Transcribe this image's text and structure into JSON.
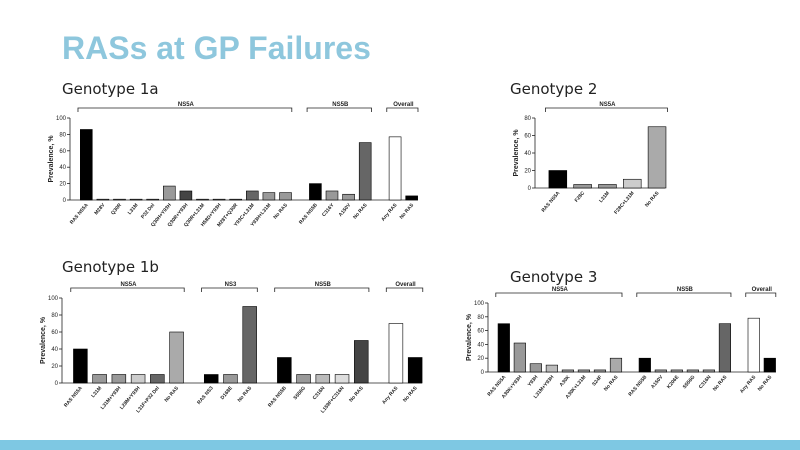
{
  "title": "RASs at GP Failures",
  "chart_data": [
    {
      "type": "bar",
      "title": "Genotype 1a",
      "y_label": "Prevalence, %",
      "ylim": [
        0,
        100
      ],
      "yticks": [
        0,
        20,
        40,
        60,
        80,
        100
      ],
      "groups": [
        {
          "name": "NS5A",
          "categories": [
            "RAS NS5A",
            "M28V",
            "Q30R",
            "L31M",
            "P32 Del",
            "Q30H+Y93H",
            "Q30R+Y93H",
            "Q30R+L31M",
            "H58D+Y93H",
            "M28T+Q30R",
            "Y93C+L31M",
            "Y93H+L31M",
            "No RAS"
          ],
          "values": [
            86,
            1,
            1,
            1,
            1,
            17,
            11,
            1,
            1,
            1,
            11,
            9,
            9
          ],
          "colors": [
            "#000000",
            "#999999",
            "#999999",
            "#999999",
            "#999999",
            "#999999",
            "#444444",
            "#999999",
            "#999999",
            "#999999",
            "#666666",
            "#999999",
            "#999999"
          ]
        },
        {
          "name": "NS5B",
          "categories": [
            "RAS NS5B",
            "C316Y",
            "A150V",
            "No RAS"
          ],
          "values": [
            20,
            11,
            7,
            70
          ],
          "colors": [
            "#000000",
            "#999999",
            "#999999",
            "#666666"
          ]
        },
        {
          "name": "Overall",
          "categories": [
            "Any RAS",
            "No RAS"
          ],
          "values": [
            77,
            5
          ],
          "colors": [
            "#ffffff",
            "#000000"
          ]
        }
      ]
    },
    {
      "type": "bar",
      "title": "Genotype 2",
      "y_label": "Prevalence, %",
      "ylim": [
        0,
        80
      ],
      "yticks": [
        0,
        20,
        40,
        60,
        80
      ],
      "groups": [
        {
          "name": "NS5A",
          "categories": [
            "RAS NS5A",
            "F28C",
            "L31M",
            "F28C+L31M",
            "No RAS"
          ],
          "values": [
            20,
            4,
            4,
            10,
            70
          ],
          "colors": [
            "#000000",
            "#999999",
            "#999999",
            "#cccccc",
            "#aaaaaa"
          ]
        }
      ]
    },
    {
      "type": "bar",
      "title": "Genotype 1b",
      "y_label": "Prevalence, %",
      "ylim": [
        0,
        100
      ],
      "yticks": [
        0,
        20,
        40,
        60,
        80,
        100
      ],
      "groups": [
        {
          "name": "NS5A",
          "categories": [
            "RAS NS5A",
            "L31M",
            "L31M+Y93H",
            "L28M+Y93H",
            "L31F+P32 Del",
            "No RAS"
          ],
          "values": [
            40,
            10,
            10,
            10,
            10,
            60
          ],
          "colors": [
            "#000000",
            "#999999",
            "#999999",
            "#cccccc",
            "#666666",
            "#aaaaaa"
          ]
        },
        {
          "name": "NS3",
          "categories": [
            "RAS NS3",
            "D168E",
            "No RAS"
          ],
          "values": [
            10,
            10,
            90
          ],
          "colors": [
            "#000000",
            "#999999",
            "#666666"
          ]
        },
        {
          "name": "NS5B",
          "categories": [
            "RAS NS5B",
            "S556G",
            "C316N",
            "L159F+C316N",
            "No RAS"
          ],
          "values": [
            30,
            10,
            10,
            10,
            50
          ],
          "colors": [
            "#000000",
            "#999999",
            "#bbbbbb",
            "#dddddd",
            "#444444"
          ]
        },
        {
          "name": "Overall",
          "categories": [
            "Any RAS",
            "No RAS"
          ],
          "values": [
            70,
            30
          ],
          "colors": [
            "#ffffff",
            "#000000"
          ]
        }
      ]
    },
    {
      "type": "bar",
      "title": "Genotype 3",
      "y_label": "Prevalence, %",
      "ylim": [
        0,
        100
      ],
      "yticks": [
        0,
        20,
        40,
        60,
        80,
        100
      ],
      "groups": [
        {
          "name": "NS5A",
          "categories": [
            "RAS NS5A",
            "A30K+Y93H",
            "Y93H",
            "L31M+Y93H",
            "A30K",
            "A30K+L31M",
            "S24F",
            "No RAS"
          ],
          "values": [
            70,
            42,
            12,
            10,
            3,
            3,
            3,
            20
          ],
          "colors": [
            "#000000",
            "#999999",
            "#999999",
            "#bbbbbb",
            "#999999",
            "#999999",
            "#999999",
            "#aaaaaa"
          ]
        },
        {
          "name": "NS5B",
          "categories": [
            "RAS NS5B",
            "A150V",
            "K206E",
            "S556G",
            "C316N",
            "No RAS"
          ],
          "values": [
            20,
            3,
            3,
            3,
            3,
            70
          ],
          "colors": [
            "#000000",
            "#999999",
            "#999999",
            "#999999",
            "#999999",
            "#666666"
          ]
        },
        {
          "name": "Overall",
          "categories": [
            "Any RAS",
            "No RAS"
          ],
          "values": [
            78,
            20
          ],
          "colors": [
            "#ffffff",
            "#000000"
          ]
        }
      ]
    }
  ]
}
